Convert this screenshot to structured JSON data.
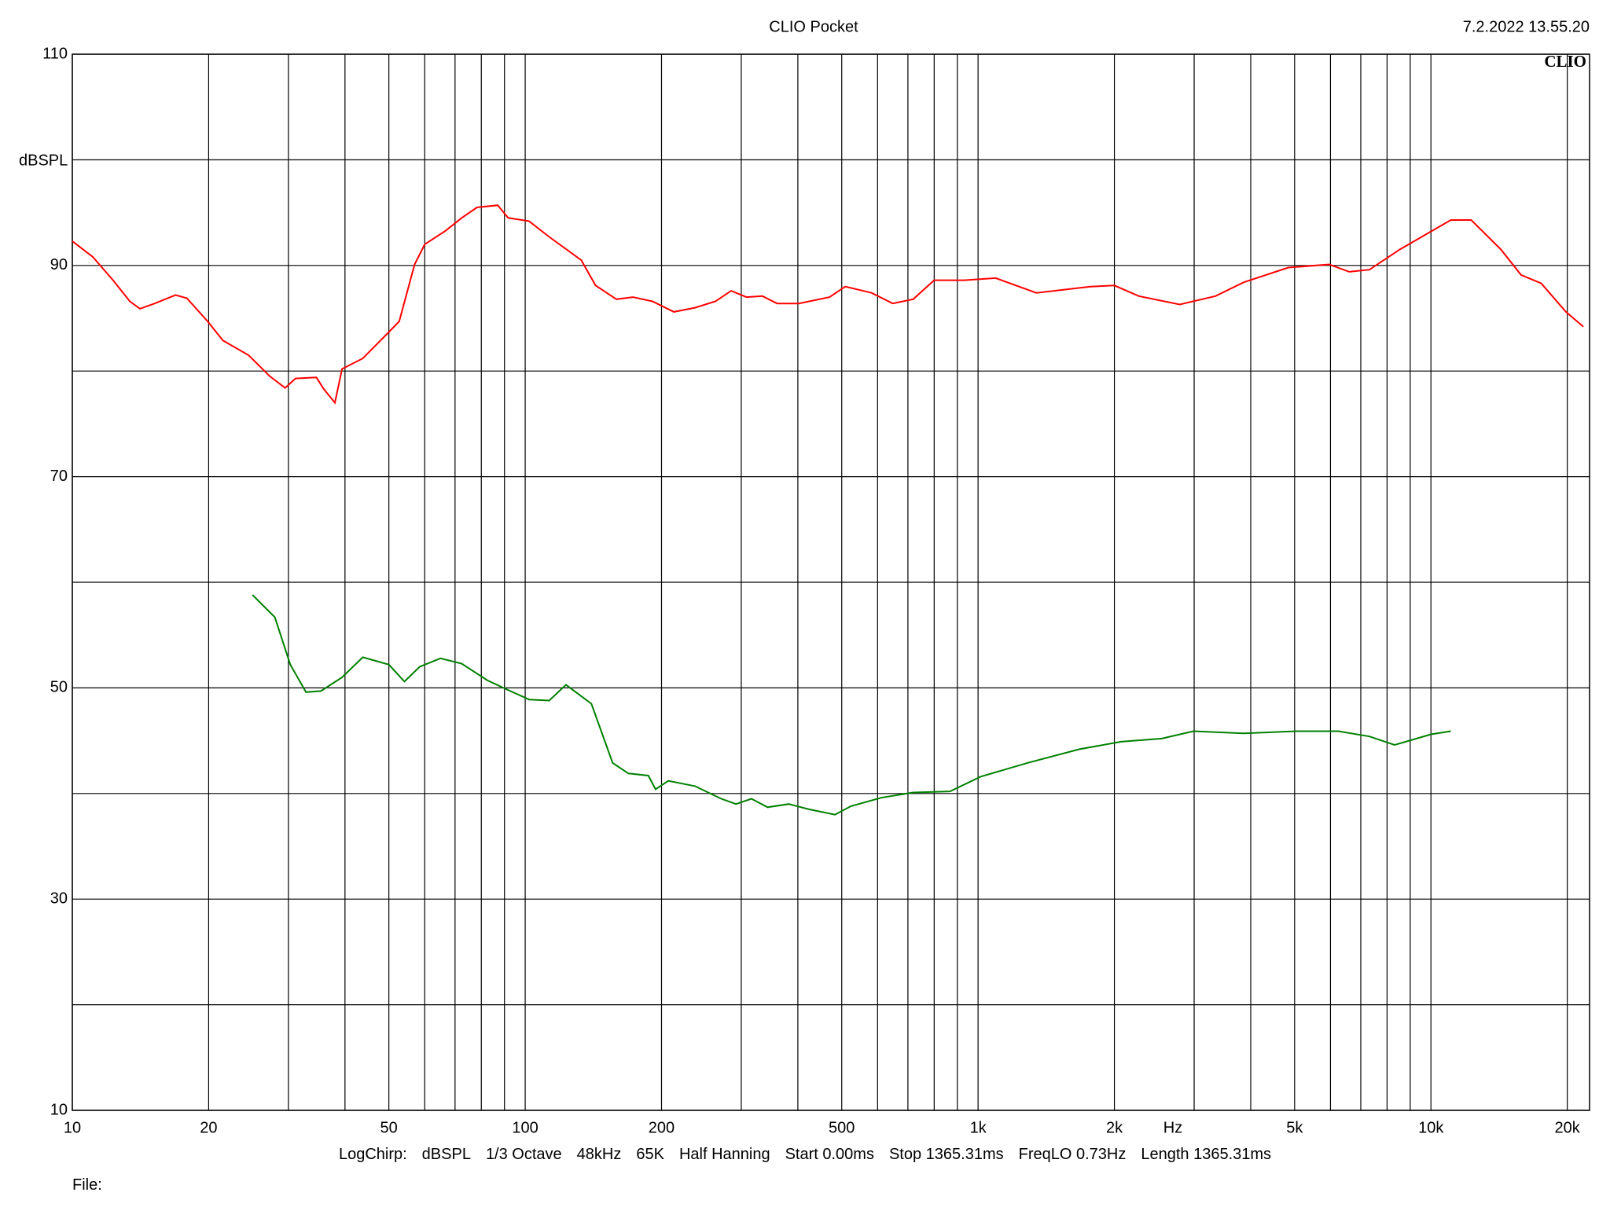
{
  "chart_data": {
    "type": "line",
    "title": "CLIO Pocket",
    "timestamp": "7.2.2022 13.55.20",
    "logo": "CLIO",
    "ylabel": "dBSPL",
    "xlabel": "Hz",
    "footer": [
      "LogChirp:",
      "dBSPL",
      "1/3 Octave",
      "48kHz",
      "65K",
      "Half Hanning",
      "Start 0.00ms",
      "Stop 1365.31ms",
      "FreqLO 0.73Hz",
      "Length 1365.31ms"
    ],
    "file_label": "File:",
    "xscale": "log",
    "xlim": [
      10,
      22400
    ],
    "ylim": [
      10,
      110
    ],
    "xticks": [
      10,
      20,
      50,
      100,
      200,
      500,
      {
        "value": 1000,
        "label": "1k"
      },
      {
        "value": 2000,
        "label": "2k"
      },
      {
        "value": 5000,
        "label": "5k"
      },
      {
        "value": 10000,
        "label": "10k"
      },
      {
        "value": 20000,
        "label": "20k"
      }
    ],
    "x_minor_grid": [
      30,
      40,
      60,
      70,
      80,
      90,
      300,
      400,
      600,
      700,
      800,
      900,
      3000,
      4000,
      6000,
      7000,
      8000,
      9000
    ],
    "yticks": [
      110,
      90,
      70,
      50,
      30,
      10
    ],
    "y_minor_grid": [
      100,
      80,
      60,
      40,
      20
    ],
    "grid": true,
    "series": [
      {
        "color": "#ff0000",
        "x": [
          10,
          11.1,
          12.3,
          13.4,
          14.1,
          15.2,
          16.9,
          17.9,
          19.9,
          21.5,
          24.5,
          27.3,
          29.5,
          31.1,
          34.6,
          35.9,
          38,
          39.4,
          43.8,
          50,
          52.7,
          57,
          60,
          66.8,
          72.4,
          78.3,
          87,
          91.7,
          102,
          113,
          133,
          143,
          159,
          173,
          191,
          213,
          237,
          263,
          285,
          308,
          334,
          360,
          402,
          470,
          509,
          582,
          648,
          719,
          800,
          932,
          1094,
          1345,
          1769,
          2000,
          2264,
          2787,
          3344,
          3858,
          4843,
          5963,
          6602,
          7315,
          8527,
          11063,
          12276,
          14278,
          15813,
          17521,
          19872,
          21700
        ],
        "values": [
          92.3,
          90.8,
          88.6,
          86.6,
          85.9,
          86.4,
          87.2,
          86.9,
          84.7,
          82.9,
          81.5,
          79.5,
          78.4,
          79.3,
          79.4,
          78.3,
          77,
          80.2,
          81.2,
          83.7,
          84.7,
          90.1,
          92,
          93.3,
          94.5,
          95.5,
          95.7,
          94.5,
          94.2,
          92.7,
          90.5,
          88.1,
          86.8,
          87,
          86.6,
          85.6,
          86,
          86.6,
          87.6,
          87,
          87.1,
          86.4,
          86.4,
          87,
          88,
          87.4,
          86.4,
          86.8,
          88.6,
          88.6,
          88.8,
          87.4,
          88,
          88.1,
          87.1,
          86.3,
          87.1,
          88.4,
          89.8,
          90.1,
          89.4,
          89.6,
          91.5,
          94.3,
          94.3,
          91.5,
          89.1,
          88.3,
          85.6,
          84.2
        ]
      },
      {
        "color": "#008000",
        "x": [
          25,
          28,
          30.3,
          32.8,
          35.4,
          39.4,
          43.8,
          50,
          54.1,
          58.5,
          65,
          72.4,
          82.6,
          91.7,
          102,
          113,
          123,
          140,
          156,
          169,
          187,
          194,
          207,
          237,
          271,
          292,
          316,
          343,
          382,
          424,
          483,
          524,
          611,
          719,
          867,
          1014,
          1287,
          1675,
          2068,
          2544,
          2989,
          3858,
          5050,
          6242,
          7315,
          8309,
          10000,
          11063
        ],
        "values": [
          58.8,
          56.7,
          52.2,
          49.6,
          49.7,
          51,
          52.9,
          52.2,
          50.6,
          52,
          52.8,
          52.3,
          50.7,
          49.8,
          48.9,
          48.8,
          50.3,
          48.5,
          42.9,
          41.9,
          41.7,
          40.4,
          41.2,
          40.7,
          39.5,
          39,
          39.5,
          38.7,
          39,
          38.5,
          38,
          38.8,
          39.6,
          40.1,
          40.2,
          41.6,
          42.9,
          44.2,
          44.9,
          45.2,
          45.9,
          45.7,
          45.9,
          45.9,
          45.4,
          44.6,
          45.6,
          45.9
        ]
      }
    ]
  }
}
